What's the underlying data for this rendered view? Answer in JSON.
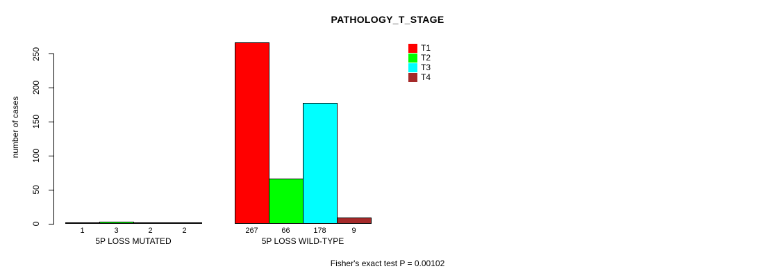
{
  "title": "PATHOLOGY_T_STAGE",
  "footer": "Fisher's exact test P = 0.00102",
  "y_axis": {
    "label": "number of cases"
  },
  "chart_data": {
    "type": "bar",
    "title": "PATHOLOGY_T_STAGE",
    "xlabel": "",
    "ylabel": "number of cases",
    "ylim": [
      0,
      250
    ],
    "y_ticks": [
      0,
      50,
      100,
      150,
      200,
      250
    ],
    "grid": false,
    "legend_position": "top-right",
    "bar_value_labels_shown": true,
    "categories": [
      "5P LOSS MUTATED",
      "5P LOSS WILD-TYPE"
    ],
    "series": [
      {
        "name": "T1",
        "color": "#FF0000",
        "values": [
          1,
          267
        ]
      },
      {
        "name": "T2",
        "color": "#00FF00",
        "values": [
          3,
          66
        ]
      },
      {
        "name": "T3",
        "color": "#00FFFF",
        "values": [
          2,
          178
        ]
      },
      {
        "name": "T4",
        "color": "#A52A2A",
        "values": [
          2,
          9
        ]
      }
    ],
    "annotation": "Fisher's exact test P = 0.00102"
  }
}
